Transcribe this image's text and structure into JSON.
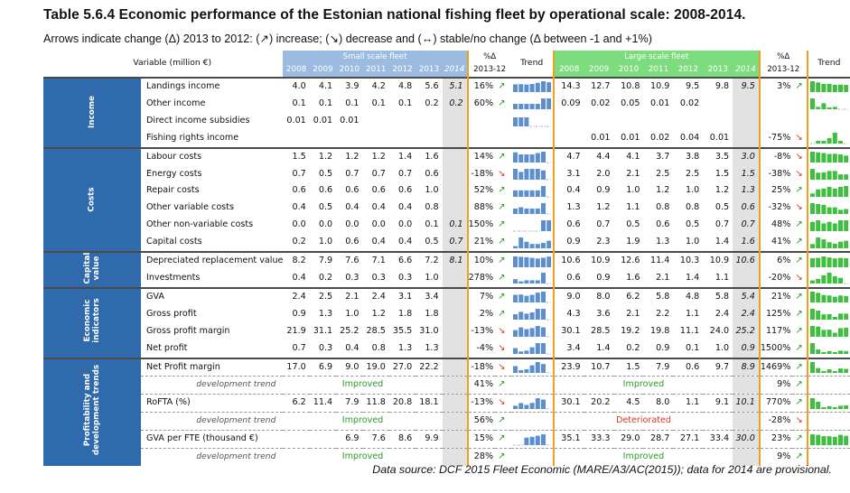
{
  "title": "Table 5.6.4 Economic performance of the Estonian national fishing fleet by operational scale: 2008-2014.",
  "subtitle": "Arrows indicate change (Δ) 2013 to 2012: (↗) increase; (↘) decrease and (↔) stable/no change (Δ between -1 and +1%)",
  "source": "Data source: DCF 2015 Fleet Economic (MARE/A3/AC(2015)); data for 2014 are provisional.",
  "header": {
    "variable_label": "Variable (million €)",
    "small_label": "Small scale fleet",
    "large_label": "Large scale fleet",
    "pct_label": "%Δ",
    "pct_period": "2013-12",
    "trend_label": "Trend",
    "years": [
      "2008",
      "2009",
      "2010",
      "2011",
      "2012",
      "2013",
      "2014"
    ]
  },
  "colors": {
    "small": "#9cbbe0",
    "large": "#7ddc7d",
    "category": "#2f6aad",
    "increase": "#2a9a2a",
    "decrease": "#d23b1e",
    "separator": "#f0a020"
  },
  "groups": [
    {
      "name": "Income",
      "rows": [
        {
          "label": "Landings income",
          "small": [
            "4.0",
            "4.1",
            "3.9",
            "4.2",
            "4.8",
            "5.6",
            "5.1"
          ],
          "s_pct": "16%",
          "s_dir": "up",
          "s_tr": [
            4.0,
            4.1,
            3.9,
            4.2,
            4.8,
            5.6,
            5.1
          ],
          "large": [
            "14.3",
            "12.7",
            "10.8",
            "10.9",
            "9.5",
            "9.8",
            "9.5"
          ],
          "l_pct": "3%",
          "l_dir": "up",
          "l_tr": [
            14.3,
            12.7,
            10.8,
            10.9,
            9.5,
            9.8,
            9.5
          ]
        },
        {
          "label": "Other income",
          "small": [
            "0.1",
            "0.1",
            "0.1",
            "0.1",
            "0.1",
            "0.2",
            "0.2"
          ],
          "s_pct": "60%",
          "s_dir": "up",
          "s_tr": [
            0.1,
            0.1,
            0.1,
            0.1,
            0.1,
            0.2,
            0.2
          ],
          "large": [
            "0.09",
            "0.02",
            "0.05",
            "0.01",
            "0.02",
            "",
            ""
          ],
          "l_pct": "",
          "l_dir": "",
          "l_tr": [
            0.09,
            0.02,
            0.05,
            0.01,
            0.02,
            0,
            0
          ]
        },
        {
          "label": "Direct income subsidies",
          "small": [
            "0.01",
            "0.01",
            "0.01",
            "",
            "",
            "",
            ""
          ],
          "s_pct": "",
          "s_dir": "",
          "s_tr": [
            0.01,
            0.01,
            0.01,
            0,
            0,
            0,
            0
          ],
          "s_full": true,
          "large": [
            "",
            "",
            "",
            "",
            "",
            "",
            ""
          ],
          "l_pct": "",
          "l_dir": "",
          "l_tr": []
        },
        {
          "label": "Fishing rights income",
          "small": [
            "",
            "",
            "",
            "",
            "",
            "",
            ""
          ],
          "s_pct": "",
          "s_dir": "",
          "s_tr": [],
          "large": [
            "",
            "0.01",
            "0.01",
            "0.02",
            "0.04",
            "0.01",
            ""
          ],
          "l_pct": "-75%",
          "l_dir": "down",
          "l_tr": [
            0,
            0.01,
            0.01,
            0.02,
            0.04,
            0.01,
            0
          ]
        }
      ]
    },
    {
      "name": "Costs",
      "rows": [
        {
          "label": "Labour costs",
          "small": [
            "1.5",
            "1.2",
            "1.2",
            "1.2",
            "1.4",
            "1.6",
            ""
          ],
          "s_pct": "14%",
          "s_dir": "up",
          "s_tr": [
            1.5,
            1.2,
            1.2,
            1.2,
            1.4,
            1.6,
            0
          ],
          "large": [
            "4.7",
            "4.4",
            "4.1",
            "3.7",
            "3.8",
            "3.5",
            "3.0"
          ],
          "l_pct": "-8%",
          "l_dir": "down",
          "l_tr": [
            4.7,
            4.4,
            4.1,
            3.7,
            3.8,
            3.5,
            3.0
          ]
        },
        {
          "label": "Energy costs",
          "small": [
            "0.7",
            "0.5",
            "0.7",
            "0.7",
            "0.7",
            "0.6",
            ""
          ],
          "s_pct": "-18%",
          "s_dir": "down",
          "s_tr": [
            0.7,
            0.5,
            0.7,
            0.7,
            0.7,
            0.6,
            0
          ],
          "large": [
            "3.1",
            "2.0",
            "2.1",
            "2.5",
            "2.5",
            "1.5",
            "1.5"
          ],
          "l_pct": "-38%",
          "l_dir": "down",
          "l_tr": [
            3.1,
            2.0,
            2.1,
            2.5,
            2.5,
            1.5,
            1.5
          ]
        },
        {
          "label": "Repair costs",
          "small": [
            "0.6",
            "0.6",
            "0.6",
            "0.6",
            "0.6",
            "1.0",
            ""
          ],
          "s_pct": "52%",
          "s_dir": "up",
          "s_tr": [
            0.6,
            0.6,
            0.6,
            0.6,
            0.6,
            1.0,
            0
          ],
          "large": [
            "0.4",
            "0.9",
            "1.0",
            "1.2",
            "1.0",
            "1.2",
            "1.3"
          ],
          "l_pct": "25%",
          "l_dir": "up",
          "l_tr": [
            0.4,
            0.9,
            1.0,
            1.2,
            1.0,
            1.2,
            1.3
          ]
        },
        {
          "label": "Other variable costs",
          "small": [
            "0.4",
            "0.5",
            "0.4",
            "0.4",
            "0.4",
            "0.8",
            ""
          ],
          "s_pct": "88%",
          "s_dir": "up",
          "s_tr": [
            0.4,
            0.5,
            0.4,
            0.4,
            0.4,
            0.8,
            0
          ],
          "large": [
            "1.3",
            "1.2",
            "1.1",
            "0.8",
            "0.8",
            "0.5",
            "0.6"
          ],
          "l_pct": "-32%",
          "l_dir": "down",
          "l_tr": [
            1.3,
            1.2,
            1.1,
            0.8,
            0.8,
            0.5,
            0.6
          ]
        },
        {
          "label": "Other non-variable costs",
          "small": [
            "0.0",
            "0.0",
            "0.0",
            "0.0",
            "0.0",
            "0.1",
            "0.1"
          ],
          "s_pct": "150%",
          "s_dir": "up",
          "s_tr": [
            0.0,
            0.0,
            0.0,
            0.0,
            0.0,
            0.1,
            0.1
          ],
          "large": [
            "0.6",
            "0.7",
            "0.5",
            "0.6",
            "0.5",
            "0.7",
            "0.7"
          ],
          "l_pct": "48%",
          "l_dir": "up",
          "l_tr": [
            0.6,
            0.7,
            0.5,
            0.6,
            0.5,
            0.7,
            0.7
          ]
        },
        {
          "label": "Capital costs",
          "small": [
            "0.2",
            "1.0",
            "0.6",
            "0.4",
            "0.4",
            "0.5",
            "0.7"
          ],
          "s_pct": "21%",
          "s_dir": "up",
          "s_tr": [
            0.2,
            1.0,
            0.6,
            0.4,
            0.4,
            0.5,
            0.7
          ],
          "large": [
            "0.9",
            "2.3",
            "1.9",
            "1.3",
            "1.0",
            "1.4",
            "1.6"
          ],
          "l_pct": "41%",
          "l_dir": "up",
          "l_tr": [
            0.9,
            2.3,
            1.9,
            1.3,
            1.0,
            1.4,
            1.6
          ]
        }
      ]
    },
    {
      "name": "Capital value",
      "rows": [
        {
          "label": "Depreciated replacement value",
          "small": [
            "8.2",
            "7.9",
            "7.6",
            "7.1",
            "6.6",
            "7.2",
            "8.1"
          ],
          "s_pct": "10%",
          "s_dir": "up",
          "s_tr": [
            8.2,
            7.9,
            7.6,
            7.1,
            6.6,
            7.2,
            8.1
          ],
          "large": [
            "10.6",
            "10.9",
            "12.6",
            "11.4",
            "10.3",
            "10.9",
            "10.6"
          ],
          "l_pct": "6%",
          "l_dir": "up",
          "l_tr": [
            10.6,
            10.9,
            12.6,
            11.4,
            10.3,
            10.9,
            10.6
          ]
        },
        {
          "label": "Investments",
          "small": [
            "0.4",
            "0.2",
            "0.3",
            "0.3",
            "0.3",
            "1.0",
            ""
          ],
          "s_pct": "278%",
          "s_dir": "up",
          "s_tr": [
            0.4,
            0.2,
            0.3,
            0.3,
            0.3,
            1.0,
            0
          ],
          "large": [
            "0.6",
            "0.9",
            "1.6",
            "2.1",
            "1.4",
            "1.1",
            ""
          ],
          "l_pct": "-20%",
          "l_dir": "down",
          "l_tr": [
            0.6,
            0.9,
            1.6,
            2.1,
            1.4,
            1.1,
            0
          ]
        }
      ]
    },
    {
      "name": "Economic indicators",
      "rows": [
        {
          "label": "GVA",
          "small": [
            "2.4",
            "2.5",
            "2.1",
            "2.4",
            "3.1",
            "3.4",
            ""
          ],
          "s_pct": "7%",
          "s_dir": "up",
          "s_tr": [
            2.4,
            2.5,
            2.1,
            2.4,
            3.1,
            3.4,
            0
          ],
          "large": [
            "9.0",
            "8.0",
            "6.2",
            "5.8",
            "4.8",
            "5.8",
            "5.4"
          ],
          "l_pct": "21%",
          "l_dir": "up",
          "l_tr": [
            9.0,
            8.0,
            6.2,
            5.8,
            4.8,
            5.8,
            5.4
          ]
        },
        {
          "label": "Gross profit",
          "small": [
            "0.9",
            "1.3",
            "1.0",
            "1.2",
            "1.8",
            "1.8",
            ""
          ],
          "s_pct": "2%",
          "s_dir": "up",
          "s_tr": [
            0.9,
            1.3,
            1.0,
            1.2,
            1.8,
            1.8,
            0
          ],
          "large": [
            "4.3",
            "3.6",
            "2.1",
            "2.2",
            "1.1",
            "2.4",
            "2.4"
          ],
          "l_pct": "125%",
          "l_dir": "up",
          "l_tr": [
            4.3,
            3.6,
            2.1,
            2.2,
            1.1,
            2.4,
            2.4
          ]
        },
        {
          "label": "Gross profit margin",
          "small": [
            "21.9",
            "31.1",
            "25.2",
            "28.5",
            "35.5",
            "31.0",
            ""
          ],
          "s_pct": "-13%",
          "s_dir": "down",
          "s_tr": [
            21.9,
            31.1,
            25.2,
            28.5,
            35.5,
            31.0,
            0
          ],
          "large": [
            "30.1",
            "28.5",
            "19.2",
            "19.8",
            "11.1",
            "24.0",
            "25.2"
          ],
          "l_pct": "117%",
          "l_dir": "up",
          "l_tr": [
            30.1,
            28.5,
            19.2,
            19.8,
            11.1,
            24.0,
            25.2
          ]
        },
        {
          "label": "Net profit",
          "small": [
            "0.7",
            "0.3",
            "0.4",
            "0.8",
            "1.3",
            "1.3",
            ""
          ],
          "s_pct": "-4%",
          "s_dir": "down",
          "s_tr": [
            0.7,
            0.3,
            0.4,
            0.8,
            1.3,
            1.3,
            0
          ],
          "large": [
            "3.4",
            "1.4",
            "0.2",
            "0.9",
            "0.1",
            "1.0",
            "0.9"
          ],
          "l_pct": "1500%",
          "l_dir": "up",
          "l_tr": [
            3.4,
            1.4,
            0.2,
            0.9,
            0.1,
            1.0,
            0.9
          ]
        }
      ]
    },
    {
      "name": "Profitability and development trends",
      "rows": [
        {
          "label": "Net Profit margin",
          "small": [
            "17.0",
            "6.9",
            "9.0",
            "19.0",
            "27.0",
            "22.2",
            ""
          ],
          "s_pct": "-18%",
          "s_dir": "down",
          "s_tr": [
            17.0,
            6.9,
            9.0,
            19.0,
            27.0,
            22.2,
            0
          ],
          "large": [
            "23.9",
            "10.7",
            "1.5",
            "7.9",
            "0.6",
            "9.7",
            "8.9"
          ],
          "l_pct": "1469%",
          "l_dir": "up",
          "l_tr": [
            23.9,
            10.7,
            1.5,
            7.9,
            0.6,
            9.7,
            8.9
          ]
        },
        {
          "dev": true,
          "label": "development trend",
          "s_status": "Improved",
          "s_bad": false,
          "s_pct": "41%",
          "s_dir": "up",
          "l_status": "Improved",
          "l_bad": false,
          "l_pct": "9%",
          "l_dir": "up"
        },
        {
          "label": "RoFTA (%)",
          "small": [
            "6.2",
            "11.4",
            "7.9",
            "11.8",
            "20.8",
            "18.1",
            ""
          ],
          "s_pct": "-13%",
          "s_dir": "down",
          "s_tr": [
            6.2,
            11.4,
            7.9,
            11.8,
            20.8,
            18.1,
            0
          ],
          "large": [
            "30.1",
            "20.2",
            "4.5",
            "8.0",
            "1.1",
            "9.1",
            "10.1"
          ],
          "l_pct": "770%",
          "l_dir": "up",
          "l_tr": [
            30.1,
            20.2,
            4.5,
            8.0,
            1.1,
            9.1,
            10.1
          ]
        },
        {
          "dev": true,
          "label": "development trend",
          "s_status": "Improved",
          "s_bad": false,
          "s_pct": "56%",
          "s_dir": "up",
          "l_status": "Deteriorated",
          "l_bad": true,
          "l_pct": "-28%",
          "l_dir": "down"
        },
        {
          "label": "GVA per FTE (thousand €)",
          "small": [
            "",
            "",
            "6.9",
            "7.6",
            "8.6",
            "9.9",
            ""
          ],
          "s_pct": "15%",
          "s_dir": "up",
          "s_tr": [
            0,
            0,
            6.9,
            7.6,
            8.6,
            9.9,
            0
          ],
          "large": [
            "35.1",
            "33.3",
            "29.0",
            "28.7",
            "27.1",
            "33.4",
            "30.0"
          ],
          "l_pct": "23%",
          "l_dir": "up",
          "l_tr": [
            35.1,
            33.3,
            29.0,
            28.7,
            27.1,
            33.4,
            30.0
          ]
        },
        {
          "dev": true,
          "label": "development trend",
          "s_status": "Improved",
          "s_bad": false,
          "s_pct": "28%",
          "s_dir": "up",
          "l_status": "Improved",
          "l_bad": false,
          "l_pct": "9%",
          "l_dir": "up"
        }
      ]
    }
  ]
}
